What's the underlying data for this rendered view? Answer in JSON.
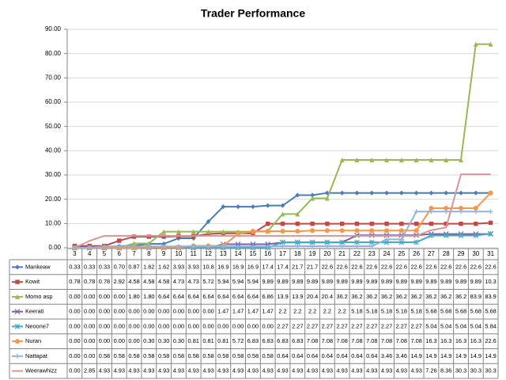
{
  "chart_data": {
    "type": "line",
    "title": "Trader Performance",
    "categories": [
      3,
      4,
      5,
      6,
      7,
      8,
      9,
      10,
      11,
      12,
      13,
      14,
      15,
      16,
      17,
      18,
      19,
      20,
      21,
      22,
      23,
      24,
      25,
      26,
      27,
      28,
      29,
      30,
      31
    ],
    "ylim": [
      0,
      90
    ],
    "yticks": [
      {
        "value": 0,
        "label": "0.00"
      },
      {
        "value": 10,
        "label": "10.00"
      },
      {
        "value": 20,
        "label": "20.00"
      },
      {
        "value": 30,
        "label": "30.00"
      },
      {
        "value": 40,
        "label": "40.00"
      },
      {
        "value": 50,
        "label": "50.00"
      },
      {
        "value": 60,
        "label": "60.00"
      },
      {
        "value": 70,
        "label": "70.00"
      },
      {
        "value": 80,
        "label": "80.00"
      },
      {
        "value": 90,
        "label": "90.00"
      }
    ],
    "grid": true,
    "series": [
      {
        "name": "Mankeaw",
        "color": "#4a7ebb",
        "marker": "diamond",
        "values": [
          0.33,
          0.33,
          0.33,
          0.7,
          0.87,
          1.62,
          1.62,
          3.93,
          3.93,
          10.8,
          16.9,
          16.9,
          16.9,
          17.4,
          17.4,
          21.7,
          21.7,
          22.6,
          22.6,
          22.6,
          22.6,
          22.6,
          22.6,
          22.6,
          22.6,
          22.6,
          22.6,
          22.6,
          22.6
        ],
        "value_labels": [
          "0.33",
          "0.33",
          "0.33",
          "0.70",
          "0.87",
          "1.62",
          "1.62",
          "3.93",
          "3.93",
          "10.8",
          "16.9",
          "16.9",
          "16.9",
          "17.4",
          "17.4",
          "21.7",
          "21.7",
          "22.6",
          "22.6",
          "22.6",
          "22.6",
          "22.6",
          "22.6",
          "22.6",
          "22.6",
          "22.6",
          "22.6",
          "22.6",
          "22.6"
        ]
      },
      {
        "name": "Kowit",
        "color": "#be4b48",
        "marker": "square",
        "values": [
          0.78,
          0.78,
          0.78,
          2.92,
          4.58,
          4.58,
          4.58,
          4.73,
          4.73,
          5.72,
          5.94,
          5.94,
          5.94,
          9.89,
          9.89,
          9.89,
          9.89,
          9.89,
          9.89,
          9.89,
          9.89,
          9.89,
          9.89,
          9.89,
          9.89,
          9.89,
          9.89,
          9.89,
          10.3
        ],
        "value_labels": [
          "0.78",
          "0.78",
          "0.78",
          "2.92",
          "4.58",
          "4.58",
          "4.58",
          "4.73",
          "4.73",
          "5.72",
          "5.94",
          "5.94",
          "5.94",
          "9.89",
          "9.89",
          "9.89",
          "9.89",
          "9.89",
          "9.89",
          "9.89",
          "9.89",
          "9.89",
          "9.89",
          "9.89",
          "9.89",
          "9.89",
          "9.89",
          "9.89",
          "10.3"
        ]
      },
      {
        "name": "Momo asp",
        "color": "#98b954",
        "marker": "triangle",
        "values": [
          0,
          0,
          0,
          0,
          1.8,
          1.8,
          6.64,
          6.64,
          6.64,
          6.64,
          6.64,
          6.64,
          6.64,
          6.86,
          13.9,
          13.9,
          20.4,
          20.4,
          36.2,
          36.2,
          36.2,
          36.2,
          36.2,
          36.2,
          36.2,
          36.2,
          36.2,
          83.9,
          83.9
        ],
        "value_labels": [
          "0.00",
          "0.00",
          "0.00",
          "0.00",
          "1.80",
          "1.80",
          "6.64",
          "6.64",
          "6.64",
          "6.64",
          "6.64",
          "6.64",
          "6.64",
          "6.86",
          "13.9",
          "13.9",
          "20.4",
          "20.4",
          "36.2",
          "36.2",
          "36.2",
          "36.2",
          "36.2",
          "36.2",
          "36.2",
          "36.2",
          "36.2",
          "83.9",
          "83.9"
        ]
      },
      {
        "name": "Keerati",
        "color": "#7d60a0",
        "marker": "x",
        "values": [
          0,
          0,
          0,
          0,
          0,
          0,
          0,
          0,
          0,
          0,
          1.47,
          1.47,
          1.47,
          1.47,
          2.2,
          2.2,
          2.2,
          2.2,
          2.2,
          5.18,
          5.18,
          5.18,
          5.18,
          5.18,
          5.68,
          5.68,
          5.68,
          5.68,
          5.68
        ],
        "value_labels": [
          "0.00",
          "0.00",
          "0.00",
          "0.00",
          "0.00",
          "0.00",
          "0.00",
          "0.00",
          "0.00",
          "0.00",
          "1.47",
          "1.47",
          "1.47",
          "1.47",
          "2.2",
          "2.2",
          "2.2",
          "2.2",
          "2.2",
          "5.18",
          "5.18",
          "5.18",
          "5.18",
          "5.18",
          "5.68",
          "5.68",
          "5.68",
          "5.68",
          "5.68"
        ]
      },
      {
        "name": "Neoone7",
        "color": "#46aac5",
        "marker": "star",
        "values": [
          0,
          0,
          0,
          0,
          0,
          0,
          0,
          0,
          0,
          0,
          0,
          0,
          0,
          0,
          2.27,
          2.27,
          2.27,
          2.27,
          2.27,
          2.27,
          2.27,
          2.27,
          2.27,
          2.27,
          5.04,
          5.04,
          5.04,
          5.04,
          5.84
        ],
        "value_labels": [
          "0.00",
          "0.00",
          "0.00",
          "0.00",
          "0.00",
          "0.00",
          "0.00",
          "0.00",
          "0.00",
          "0.00",
          "0.00",
          "0.00",
          "0.00",
          "0.00",
          "2.27",
          "2.27",
          "2.27",
          "2.27",
          "2.27",
          "2.27",
          "2.27",
          "2.27",
          "2.27",
          "2.27",
          "5.04",
          "5.04",
          "5.04",
          "5.04",
          "5.84"
        ]
      },
      {
        "name": "Nuran",
        "color": "#f79646",
        "marker": "circle",
        "values": [
          0,
          0,
          0,
          0,
          0,
          0.3,
          0.3,
          0.3,
          0.81,
          0.81,
          0.81,
          5.72,
          6.83,
          6.83,
          6.83,
          6.83,
          7.08,
          7.08,
          7.08,
          7.08,
          7.08,
          7.08,
          7.08,
          7.08,
          16.3,
          16.3,
          16.3,
          16.3,
          22.6
        ],
        "value_labels": [
          "0.00",
          "0.00",
          "0.00",
          "0.00",
          "0.00",
          "0.30",
          "0.30",
          "0.30",
          "0.81",
          "0.81",
          "0.81",
          "5.72",
          "6.83",
          "6.83",
          "6.83",
          "6.83",
          "7.08",
          "7.08",
          "7.08",
          "7.08",
          "7.08",
          "7.08",
          "7.08",
          "7.08",
          "16.3",
          "16.3",
          "16.3",
          "16.3",
          "22.6"
        ]
      },
      {
        "name": "Nattapat",
        "color": "#8eb4e3",
        "marker": "plus",
        "values": [
          0,
          0,
          0.58,
          0.58,
          0.58,
          0.58,
          0.58,
          0.58,
          0.58,
          0.58,
          0.58,
          0.58,
          0.58,
          0.58,
          0.64,
          0.64,
          0.64,
          0.64,
          0.64,
          0.64,
          0.64,
          3.46,
          3.46,
          14.9,
          14.9,
          14.9,
          14.9,
          14.9,
          14.9
        ],
        "value_labels": [
          "0.00",
          "0.00",
          "0.58",
          "0.58",
          "0.58",
          "0.58",
          "0.58",
          "0.58",
          "0.58",
          "0.58",
          "0.58",
          "0.58",
          "0.58",
          "0.58",
          "0.64",
          "0.64",
          "0.64",
          "0.64",
          "0.64",
          "0.64",
          "0.64",
          "3.46",
          "3.46",
          "14.9",
          "14.9",
          "14.9",
          "14.9",
          "14.9",
          "14.9"
        ]
      },
      {
        "name": "Weerawhizz",
        "color": "#d99694",
        "marker": "none",
        "values": [
          0,
          2.85,
          4.93,
          4.93,
          4.93,
          4.93,
          4.93,
          4.93,
          4.93,
          4.93,
          4.93,
          4.93,
          4.93,
          4.93,
          4.93,
          4.93,
          4.93,
          4.93,
          4.93,
          4.93,
          4.93,
          4.93,
          4.93,
          4.93,
          7.26,
          8.36,
          30.3,
          30.3,
          30.3
        ],
        "value_labels": [
          "0.00",
          "2.85",
          "4.93",
          "4.93",
          "4.93",
          "4.93",
          "4.93",
          "4.93",
          "4.93",
          "4.93",
          "4.93",
          "4.93",
          "4.93",
          "4.93",
          "4.93",
          "4.93",
          "4.93",
          "4.93",
          "4.93",
          "4.93",
          "4.93",
          "4.93",
          "4.93",
          "4.93",
          "7.26",
          "8.36",
          "30.3",
          "30.3",
          "30.3"
        ]
      }
    ]
  }
}
